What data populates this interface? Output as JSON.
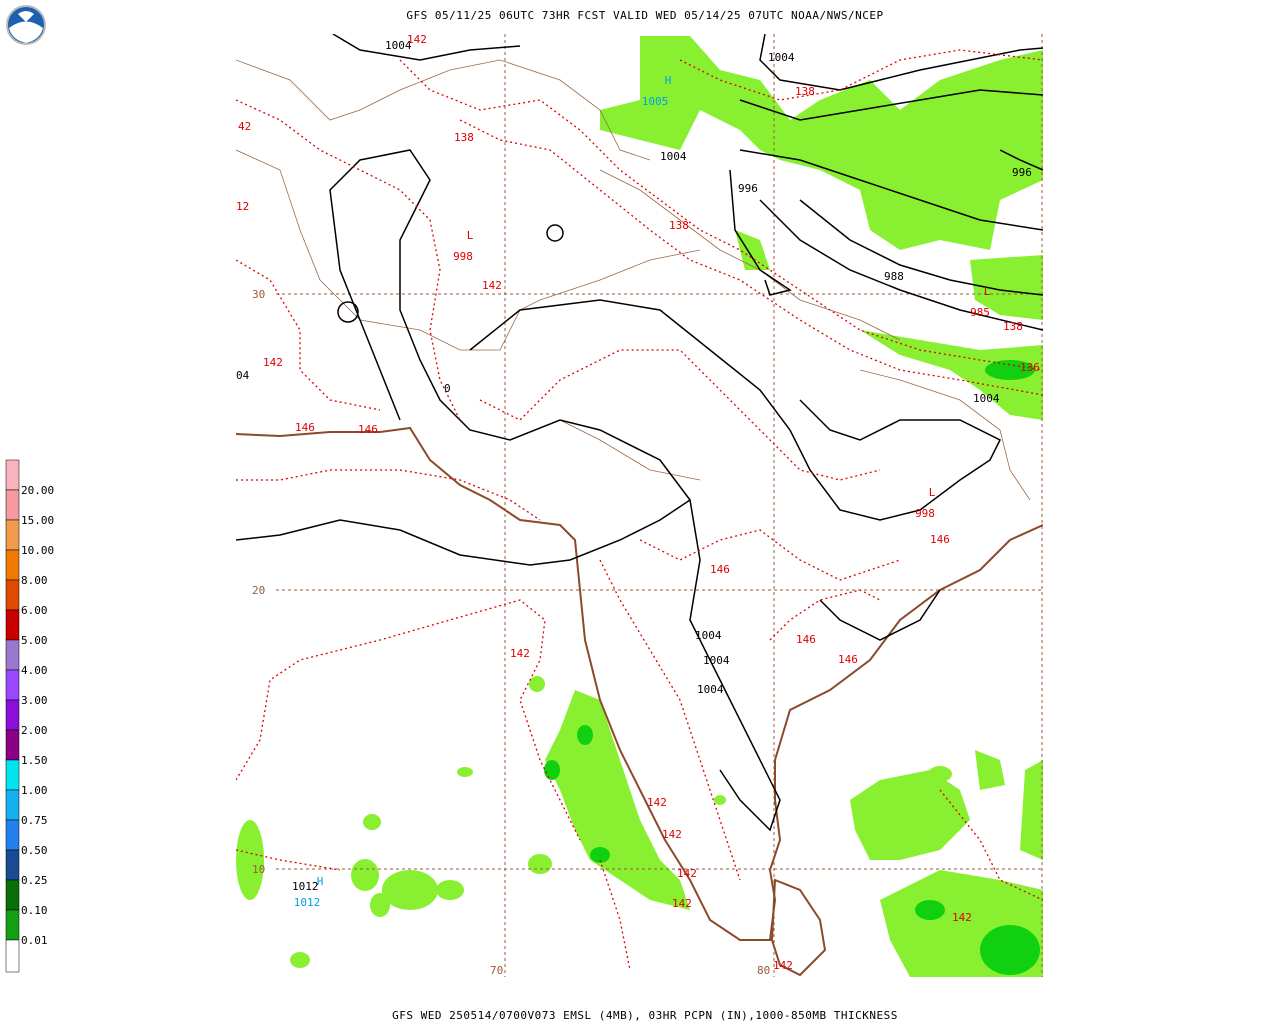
{
  "header": {
    "title": "GFS 05/11/25 06UTC 73HR FCST VALID WED 05/14/25 07UTC NOAA/NWS/NCEP"
  },
  "footer": {
    "caption": "GFS WED 250514/0700V073 EMSL (4MB), 03HR PCPN (IN),1000-850MB THICKNESS"
  },
  "legend": {
    "labels": [
      "20.00",
      "15.00",
      "10.00",
      "8.00",
      "6.00",
      "5.00",
      "4.00",
      "3.00",
      "2.00",
      "1.50",
      "1.00",
      "0.75",
      "0.50",
      "0.25",
      "0.10",
      "0.01"
    ],
    "colors": [
      "#f8b4bc",
      "#f49aa0",
      "#f29a4c",
      "#f07a00",
      "#e04a00",
      "#c80000",
      "#9a78d0",
      "#9a48ff",
      "#8a10d8",
      "#8c0088",
      "#00e4f0",
      "#14b0f0",
      "#2480ee",
      "#1a4a94",
      "#0a6e0a",
      "#12a012",
      "#10d810",
      "#00ff00",
      "#8cff00",
      "#ffffff"
    ]
  },
  "map": {
    "grid_labels": [
      "30",
      "20",
      "10",
      "70",
      "80"
    ],
    "isobar_labels": [
      "1004",
      "1004",
      "1004",
      "996",
      "996",
      "988",
      "04",
      "0",
      "1004",
      "1004",
      "1004",
      "1004",
      "1012"
    ],
    "thickness_labels": [
      "142",
      "138",
      "42",
      "138",
      "12",
      "138",
      "142",
      "138",
      "142",
      "136",
      "146",
      "146",
      "146",
      "146",
      "146",
      "146",
      "142",
      "142",
      "142",
      "142",
      "142",
      "142",
      "142"
    ],
    "centers": [
      {
        "symbol": "H",
        "value": "1005"
      },
      {
        "symbol": "L",
        "value": "998"
      },
      {
        "symbol": "L",
        "value": "985"
      },
      {
        "symbol": "L",
        "value": "998"
      },
      {
        "symbol": "H",
        "value": "1012"
      }
    ]
  }
}
